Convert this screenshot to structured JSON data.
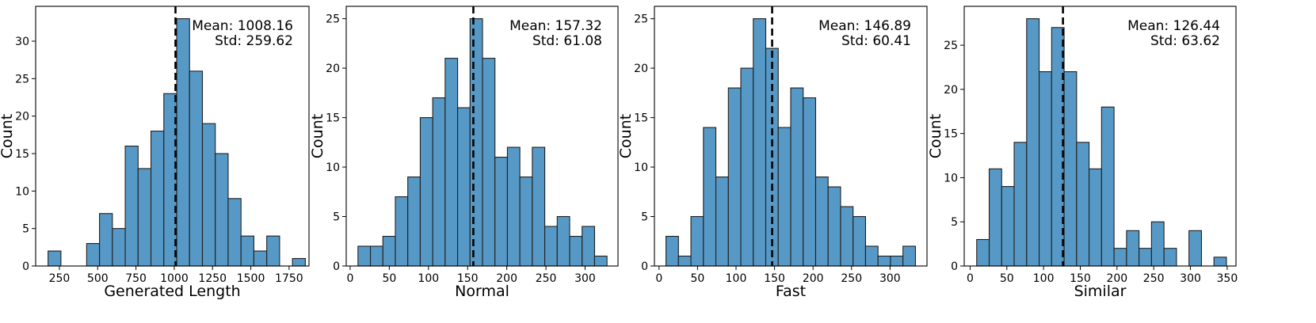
{
  "colors": {
    "bar_fill": "#5799c6",
    "bar_edge": "#1f1f1f",
    "mean_line": "#000000",
    "axes": "#000000"
  },
  "chart_data": [
    {
      "type": "bar",
      "title": "",
      "xlabel": "Generated Length",
      "ylabel": "Count",
      "xlim": [
        95,
        1880
      ],
      "ylim": [
        0,
        34.65
      ],
      "xticks": [
        250,
        500,
        750,
        1000,
        1250,
        1500,
        1750
      ],
      "yticks": [
        0,
        5,
        10,
        15,
        20,
        25,
        30
      ],
      "bin_start": 176,
      "bin_width": 84,
      "values": [
        2,
        0,
        0,
        3,
        7,
        5,
        16,
        13,
        18,
        23,
        33,
        26,
        19,
        15,
        9,
        4,
        2,
        4,
        0,
        1
      ],
      "mean_value": 1008.16,
      "mean_text": "Mean: 1008.16",
      "std_text": "Std: 259.62"
    },
    {
      "type": "bar",
      "title": "",
      "xlabel": "Normal",
      "ylabel": "Count",
      "xlim": [
        -5,
        342
      ],
      "ylim": [
        0,
        26.25
      ],
      "xticks": [
        0,
        50,
        100,
        150,
        200,
        250,
        300
      ],
      "yticks": [
        0,
        5,
        10,
        15,
        20,
        25
      ],
      "bin_start": 10,
      "bin_width": 15.9,
      "values": [
        2,
        2,
        3,
        7,
        9,
        15,
        17,
        21,
        16,
        25,
        21,
        11,
        12,
        9,
        12,
        4,
        5,
        3,
        4,
        1
      ],
      "mean_value": 157.32,
      "mean_text": "Mean: 157.32",
      "std_text": "Std: 61.08"
    },
    {
      "type": "bar",
      "title": "",
      "xlabel": "Fast",
      "ylabel": "Count",
      "xlim": [
        -6,
        348
      ],
      "ylim": [
        0,
        26.25
      ],
      "xticks": [
        0,
        50,
        100,
        150,
        200,
        250,
        300
      ],
      "yticks": [
        0,
        5,
        10,
        15,
        20,
        25
      ],
      "bin_start": 9,
      "bin_width": 16.2,
      "values": [
        3,
        1,
        5,
        14,
        9,
        18,
        20,
        25,
        22,
        14,
        18,
        17,
        9,
        8,
        6,
        5,
        2,
        1,
        1,
        2
      ],
      "mean_value": 146.89,
      "mean_text": "Mean: 146.89",
      "std_text": "Std: 60.41"
    },
    {
      "type": "bar",
      "title": "",
      "xlabel": "Similar",
      "ylabel": "Count",
      "xlim": [
        -8,
        362
      ],
      "ylim": [
        0,
        29.4
      ],
      "xticks": [
        0,
        50,
        100,
        150,
        200,
        250,
        300,
        350
      ],
      "yticks": [
        0,
        5,
        10,
        15,
        20,
        25
      ],
      "bin_start": 9,
      "bin_width": 17.0,
      "values": [
        3,
        11,
        9,
        14,
        28,
        22,
        27,
        22,
        14,
        11,
        18,
        2,
        4,
        2,
        5,
        2,
        0,
        4,
        0,
        1
      ],
      "mean_value": 126.44,
      "mean_text": "Mean: 126.44",
      "std_text": "Std: 63.62"
    }
  ]
}
